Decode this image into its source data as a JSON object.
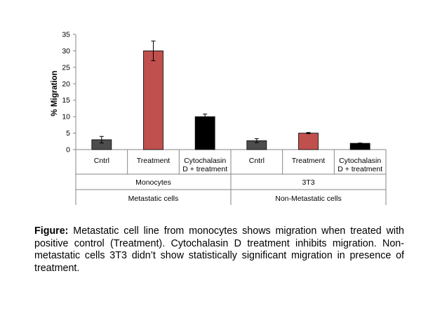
{
  "chart_data": {
    "type": "bar",
    "ylabel": "% Migration",
    "ylim": [
      0,
      35
    ],
    "yticks": [
      0,
      5,
      10,
      15,
      20,
      25,
      30,
      35
    ],
    "grid": false,
    "legend": "none",
    "bars": [
      {
        "category": "Cntrl",
        "value": 3,
        "error": 1,
        "color": "#4d4d4d"
      },
      {
        "category": "Treatment",
        "value": 30,
        "error": 3,
        "color": "#c0504d"
      },
      {
        "category": "Cytochalasin D + treatment",
        "value": 10,
        "error": 0.8,
        "color": "#000000"
      },
      {
        "category": "Cntrl",
        "value": 2.7,
        "error": 0.6,
        "color": "#4d4d4d"
      },
      {
        "category": "Treatment",
        "value": 5,
        "error": 0.2,
        "color": "#c0504d"
      },
      {
        "category": "Cytochalasin D + treatment",
        "value": 1.9,
        "error": 0.1,
        "color": "#000000"
      }
    ],
    "category_display_lines": [
      [
        "Cntrl"
      ],
      [
        "Treatment"
      ],
      [
        "Cytochalasin",
        "D + treatment"
      ],
      [
        "Cntrl"
      ],
      [
        "Treatment"
      ],
      [
        "Cytochalasin",
        "D + treatment"
      ]
    ],
    "groups": [
      {
        "name": "Monocytes",
        "span": [
          0,
          2
        ]
      },
      {
        "name": "3T3",
        "span": [
          3,
          5
        ]
      }
    ],
    "supergroups": [
      {
        "name": "Metastatic cells",
        "span": [
          0,
          2
        ]
      },
      {
        "name": "Non-Metastatic cells",
        "span": [
          3,
          5
        ]
      }
    ]
  },
  "caption": {
    "label": "Figure:",
    "text": " Metastatic cell line from monocytes shows migration when treated with positive control (Treatment). Cytochalasin D treatment inhibits migration. Non-metastatic cells 3T3 didn’t show statistically significant migration in presence of treatment."
  }
}
